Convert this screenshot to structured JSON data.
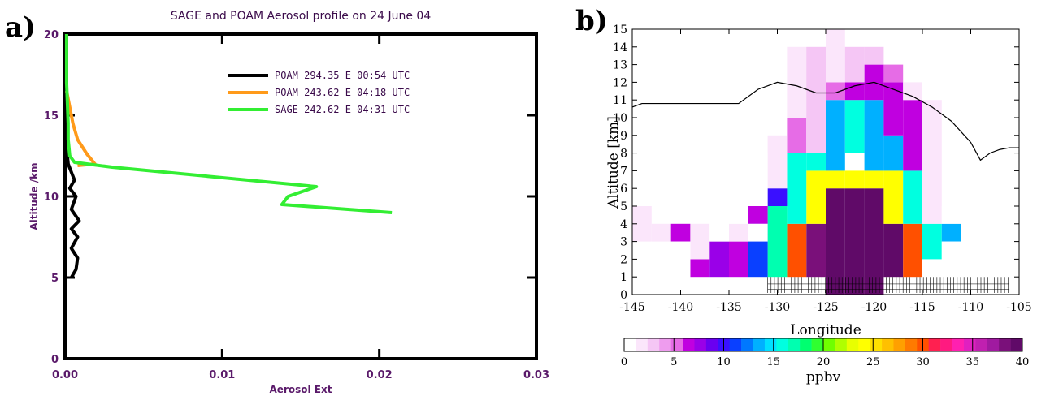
{
  "panels": {
    "a": "a)",
    "b": "b)"
  },
  "chart_data": [
    {
      "type": "line",
      "title": "SAGE and POAM Aerosol profile on 24 June 04",
      "xlabel": "Aerosol Ext",
      "ylabel": "Altitude /km",
      "xlim": [
        0,
        0.03
      ],
      "ylim": [
        0,
        20
      ],
      "xticks": [
        "0.00",
        "0.01",
        "0.02",
        "0.03"
      ],
      "yticks": [
        "0",
        "5",
        "10",
        "15",
        "20"
      ],
      "legend_position": "top-right",
      "series": [
        {
          "name": "POAM 294.35 E 00:54 UTC",
          "color": "#000000",
          "x": [
            0.0004,
            0.0007,
            0.0008,
            0.0004,
            0.0008,
            0.0004,
            0.0009,
            0.0004,
            0.0007,
            0.0003,
            0.0006,
            0.0002,
            0.0001,
            0.0001,
            0.0001
          ],
          "y": [
            5,
            5.5,
            6.2,
            6.8,
            7.5,
            8,
            8.5,
            9.2,
            10,
            10.5,
            11,
            12,
            13,
            16,
            20
          ]
        },
        {
          "name": "POAM 243.62 E 04:18 UTC",
          "color": "#ff9a1a",
          "x": [
            0.0001,
            0.0003,
            0.0005,
            0.0008,
            0.0014,
            0.0019,
            0.0008
          ],
          "y": [
            16.5,
            15.5,
            14.5,
            13.5,
            12.6,
            12,
            11.9
          ]
        },
        {
          "name": "SAGE  242.62 E 04:31 UTC",
          "color": "#33ee33",
          "x": [
            0.0208,
            0.0138,
            0.0142,
            0.016,
            0.003,
            0.0006,
            0.0003,
            0.0002,
            0.0002,
            0.0001,
            0.0001
          ],
          "y": [
            9.0,
            9.5,
            10.0,
            10.6,
            11.8,
            12.1,
            12.5,
            13.5,
            14.5,
            17,
            20
          ]
        }
      ]
    },
    {
      "type": "heatmap",
      "xlabel": "Longitude",
      "ylabel": "Altitude [km]",
      "xlim": [
        -145,
        -105
      ],
      "ylim": [
        0,
        15
      ],
      "xticks": [
        "-145",
        "-140",
        "-135",
        "-130",
        "-125",
        "-120",
        "-115",
        "-110",
        "-105"
      ],
      "yticks": [
        "0",
        "1",
        "2",
        "3",
        "4",
        "5",
        "6",
        "7",
        "8",
        "9",
        "10",
        "11",
        "12",
        "13",
        "14",
        "15"
      ],
      "colorbar": {
        "label": "ppbv",
        "range": [
          0,
          40
        ],
        "ticks": [
          "0",
          "5",
          "10",
          "15",
          "20",
          "25",
          "30",
          "35",
          "40"
        ],
        "colors": [
          "#ffffff",
          "#fbe6fb",
          "#f5c6f5",
          "#ee9cee",
          "#e66ce6",
          "#c000e0",
          "#9a00e8",
          "#6a00f0",
          "#3a10ff",
          "#0a40ff",
          "#0078ff",
          "#00b0ff",
          "#00e0ff",
          "#00ffe0",
          "#00ffb0",
          "#00ff70",
          "#30ff30",
          "#70ff00",
          "#b0ff00",
          "#e8ff00",
          "#ffff00",
          "#ffe000",
          "#ffc000",
          "#ffa000",
          "#ff7a00",
          "#ff5000",
          "#ff2050",
          "#ff1a80",
          "#ff20b0",
          "#e020c0",
          "#c020b0",
          "#a01aa0",
          "#7a107a",
          "#600a68"
        ]
      },
      "tropopause": {
        "x": [
          -145,
          -144,
          -142,
          -138,
          -134,
          -132,
          -130,
          -128,
          -126,
          -124,
          -122,
          -120,
          -118,
          -116,
          -114,
          -112,
          -110,
          -109,
          -108,
          -107,
          -106,
          -105
        ],
        "y": [
          10.6,
          10.8,
          10.8,
          10.8,
          10.8,
          11.6,
          12.0,
          11.8,
          11.4,
          11.4,
          11.8,
          12.0,
          11.6,
          11.2,
          10.6,
          9.8,
          8.6,
          7.6,
          8.0,
          8.2,
          8.3,
          8.3
        ]
      },
      "cells": [
        {
          "x": -124,
          "y0": 0,
          "y1": 6,
          "v": 40
        },
        {
          "x": -122,
          "y0": 0,
          "y1": 6,
          "v": 40
        },
        {
          "x": -120,
          "y0": 0,
          "y1": 6,
          "v": 39
        },
        {
          "x": -118,
          "y0": 1,
          "y1": 4,
          "v": 40
        },
        {
          "x": -126,
          "y0": 1,
          "y1": 4,
          "v": 38
        },
        {
          "x": -126,
          "y0": 4,
          "y1": 7,
          "v": 24
        },
        {
          "x": -118,
          "y0": 4,
          "y1": 7,
          "v": 24
        },
        {
          "x": -124,
          "y0": 6,
          "y1": 7,
          "v": 24
        },
        {
          "x": -122,
          "y0": 6,
          "y1": 7,
          "v": 24
        },
        {
          "x": -120,
          "y0": 6,
          "y1": 7,
          "v": 24
        },
        {
          "x": -128,
          "y0": 1,
          "y1": 4,
          "v": 30
        },
        {
          "x": -116,
          "y0": 1,
          "y1": 4,
          "v": 30
        },
        {
          "x": -128,
          "y0": 4,
          "y1": 8,
          "v": 16
        },
        {
          "x": -116,
          "y0": 4,
          "y1": 7,
          "v": 16
        },
        {
          "x": -126,
          "y0": 7,
          "y1": 8,
          "v": 16
        },
        {
          "x": -124,
          "y0": 7,
          "y1": 11,
          "v": 14
        },
        {
          "x": -122,
          "y0": 8,
          "y1": 11,
          "v": 16
        },
        {
          "x": -120,
          "y0": 7,
          "y1": 11,
          "v": 14
        },
        {
          "x": -118,
          "y0": 7,
          "y1": 9,
          "v": 14
        },
        {
          "x": -130,
          "y0": 1,
          "y1": 5,
          "v": 17
        },
        {
          "x": -114,
          "y0": 2,
          "y1": 4,
          "v": 16
        },
        {
          "x": -132,
          "y0": 1,
          "y1": 4,
          "v": 11
        },
        {
          "x": -112,
          "y0": 3,
          "y1": 4,
          "v": 14
        },
        {
          "x": -134,
          "y0": 1,
          "y1": 3,
          "v": 6
        },
        {
          "x": -130,
          "y0": 5,
          "y1": 6,
          "v": 10
        },
        {
          "x": -132,
          "y0": 4,
          "y1": 5,
          "v": 7
        },
        {
          "x": -128,
          "y0": 8,
          "y1": 10,
          "v": 5
        },
        {
          "x": -118,
          "y0": 9,
          "y1": 12,
          "v": 6
        },
        {
          "x": -116,
          "y0": 7,
          "y1": 11,
          "v": 6
        },
        {
          "x": -124,
          "y0": 11,
          "y1": 12,
          "v": 5
        },
        {
          "x": -122,
          "y0": 11,
          "y1": 12,
          "v": 6
        },
        {
          "x": -120,
          "y0": 11,
          "y1": 13,
          "v": 7
        },
        {
          "x": -138,
          "y0": 1,
          "y1": 2,
          "v": 7
        },
        {
          "x": -136,
          "y0": 1,
          "y1": 3,
          "v": 8
        },
        {
          "x": -140,
          "y0": 3,
          "y1": 4,
          "v": 7
        },
        {
          "x": -142,
          "y0": 3,
          "y1": 4,
          "v": 2
        },
        {
          "x": -144,
          "y0": 3,
          "y1": 5,
          "v": 2
        },
        {
          "x": -138,
          "y0": 2,
          "y1": 4,
          "v": 2
        },
        {
          "x": -136,
          "y0": 3,
          "y1": 4,
          "v": 1
        },
        {
          "x": -134,
          "y0": 3,
          "y1": 4,
          "v": 2
        },
        {
          "x": -132,
          "y0": 3,
          "y1": 4,
          "v": 1
        },
        {
          "x": -140,
          "y0": 1,
          "y1": 3,
          "v": 1
        },
        {
          "x": -130,
          "y0": 6,
          "y1": 9,
          "v": 2
        },
        {
          "x": -128,
          "y0": 10,
          "y1": 14,
          "v": 2
        },
        {
          "x": -126,
          "y0": 8,
          "y1": 14,
          "v": 3
        },
        {
          "x": -124,
          "y0": 12,
          "y1": 15,
          "v": 2
        },
        {
          "x": -122,
          "y0": 12,
          "y1": 14,
          "v": 3
        },
        {
          "x": -120,
          "y0": 13,
          "y1": 14,
          "v": 3
        },
        {
          "x": -118,
          "y0": 12,
          "y1": 13,
          "v": 5
        },
        {
          "x": -116,
          "y0": 11,
          "y1": 12,
          "v": 2
        },
        {
          "x": -114,
          "y0": 4,
          "y1": 11,
          "v": 2
        },
        {
          "x": -112,
          "y0": 4,
          "y1": 5,
          "v": 1
        },
        {
          "x": -112,
          "y0": 2,
          "y1": 3,
          "v": 1
        },
        {
          "x": -110,
          "y0": 6,
          "y1": 8,
          "v": 1
        },
        {
          "x": -132,
          "y0": 5,
          "y1": 8,
          "v": 1
        },
        {
          "x": -134,
          "y0": 4,
          "y1": 6,
          "v": 1
        }
      ],
      "instrument_marks": {
        "x0": -131,
        "x1": -106,
        "y": [
          0,
          1
        ]
      }
    }
  ]
}
